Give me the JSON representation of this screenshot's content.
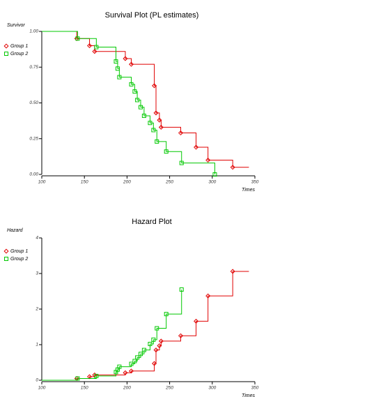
{
  "chart_data": [
    {
      "type": "step",
      "title": "Survival Plot (PL estimates)",
      "y_label": "Survivor",
      "x_label": "Times",
      "xlim": [
        100,
        350
      ],
      "ylim": [
        0,
        1
      ],
      "xticks": [
        100,
        150,
        200,
        250,
        300,
        350
      ],
      "yticks": [
        {
          "value": 0,
          "label": "0.00"
        },
        {
          "value": 0.25,
          "label": "0.25"
        },
        {
          "value": 0.5,
          "label": "0.50"
        },
        {
          "value": 0.75,
          "label": "0.75"
        },
        {
          "value": 1,
          "label": "1.00"
        }
      ],
      "start": [
        100,
        1
      ],
      "series": [
        {
          "name": "Group 1",
          "color": "#e00000",
          "marker": "diamond",
          "last_x": 343,
          "x": [
            141,
            156,
            162,
            198,
            205,
            232,
            234,
            238,
            240,
            263,
            281,
            295,
            324
          ],
          "values": [
            0.95,
            0.9,
            0.86,
            0.81,
            0.77,
            0.62,
            0.43,
            0.38,
            0.33,
            0.29,
            0.19,
            0.1,
            0.05
          ]
        },
        {
          "name": "Group 2",
          "color": "#00c800",
          "marker": "square",
          "x": [
            142,
            164,
            187,
            189,
            191,
            205,
            209,
            212,
            216,
            220,
            227,
            231,
            235,
            246,
            264,
            303
          ],
          "values": [
            0.95,
            0.89,
            0.79,
            0.74,
            0.68,
            0.63,
            0.58,
            0.52,
            0.47,
            0.41,
            0.36,
            0.31,
            0.23,
            0.16,
            0.08,
            0
          ]
        }
      ]
    },
    {
      "type": "step",
      "title": "Hazard Plot",
      "y_label": "Hazard",
      "x_label": "Times",
      "xlim": [
        100,
        350
      ],
      "ylim": [
        0,
        4
      ],
      "xticks": [
        100,
        150,
        200,
        250,
        300,
        350
      ],
      "yticks": [
        0,
        1,
        2,
        3,
        4
      ],
      "start": [
        100,
        0
      ],
      "series": [
        {
          "name": "Group 1",
          "color": "#e00000",
          "marker": "diamond",
          "last_x": 343,
          "x": [
            141,
            156,
            162,
            198,
            205,
            232,
            234,
            238,
            240,
            263,
            281,
            295,
            324
          ],
          "values": [
            0.05,
            0.1,
            0.15,
            0.21,
            0.26,
            0.47,
            0.85,
            0.97,
            1.1,
            1.25,
            1.66,
            2.37,
            3.06
          ]
        },
        {
          "name": "Group 2",
          "color": "#00c800",
          "marker": "square",
          "x": [
            142,
            164,
            187,
            189,
            191,
            205,
            209,
            212,
            216,
            220,
            227,
            231,
            235,
            246,
            264
          ],
          "values": [
            0.05,
            0.12,
            0.23,
            0.3,
            0.38,
            0.46,
            0.54,
            0.64,
            0.74,
            0.85,
            1.02,
            1.14,
            1.46,
            1.86,
            2.55
          ]
        }
      ]
    }
  ]
}
